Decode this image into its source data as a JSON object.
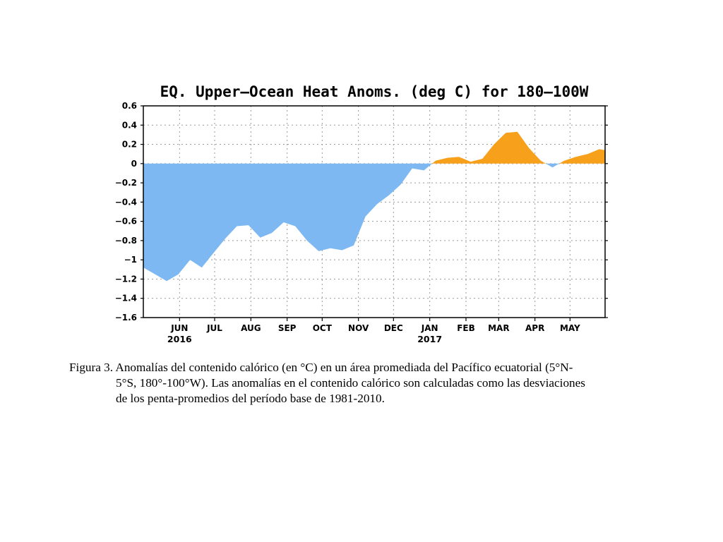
{
  "chart_data": {
    "type": "area",
    "title": "EQ. Upper—Ocean Heat Anoms. (deg C) for 180—100W",
    "xlabel": "",
    "ylabel": "",
    "ylim": [
      -1.6,
      0.6
    ],
    "yticks": [
      0.6,
      0.4,
      0.2,
      0,
      -0.2,
      -0.4,
      -0.6,
      -0.8,
      -1,
      -1.2,
      -1.4,
      -1.6
    ],
    "ytick_labels": [
      "0.6",
      "0.4",
      "0.2",
      "0",
      "−0.2",
      "−0.4",
      "−0.6",
      "−0.8",
      "−1",
      "−1.2",
      "−1.4",
      "−1.6"
    ],
    "xlim": [
      "2016-05-01",
      "2017-05-31"
    ],
    "xticks": [
      {
        "date": "2016-06-01",
        "label": "JUN",
        "year": "2016"
      },
      {
        "date": "2016-07-01",
        "label": "JUL"
      },
      {
        "date": "2016-08-01",
        "label": "AUG"
      },
      {
        "date": "2016-09-01",
        "label": "SEP"
      },
      {
        "date": "2016-10-01",
        "label": "OCT"
      },
      {
        "date": "2016-11-01",
        "label": "NOV"
      },
      {
        "date": "2016-12-01",
        "label": "DEC"
      },
      {
        "date": "2017-01-01",
        "label": "JAN",
        "year": "2017"
      },
      {
        "date": "2017-02-01",
        "label": "FEB"
      },
      {
        "date": "2017-03-01",
        "label": "MAR"
      },
      {
        "date": "2017-04-01",
        "label": "APR"
      },
      {
        "date": "2017-05-01",
        "label": "MAY"
      }
    ],
    "grid": true,
    "fill_colors": {
      "positive": "#f7a01c",
      "negative": "#7db8f2"
    },
    "x": [
      "2016-05-01",
      "2016-05-11",
      "2016-05-21",
      "2016-05-31",
      "2016-06-10",
      "2016-06-20",
      "2016-06-30",
      "2016-07-10",
      "2016-07-20",
      "2016-07-30",
      "2016-08-09",
      "2016-08-19",
      "2016-08-29",
      "2016-09-08",
      "2016-09-18",
      "2016-09-28",
      "2016-10-08",
      "2016-10-18",
      "2016-10-28",
      "2016-11-07",
      "2016-11-17",
      "2016-11-27",
      "2016-12-07",
      "2016-12-17",
      "2016-12-27",
      "2017-01-06",
      "2017-01-16",
      "2017-01-26",
      "2017-02-05",
      "2017-02-15",
      "2017-02-25",
      "2017-03-07",
      "2017-03-17",
      "2017-03-27",
      "2017-04-06",
      "2017-04-16",
      "2017-04-26",
      "2017-05-06",
      "2017-05-16",
      "2017-05-26",
      "2017-05-31"
    ],
    "values": [
      -1.08,
      -1.15,
      -1.22,
      -1.15,
      -1.0,
      -1.08,
      -0.93,
      -0.78,
      -0.65,
      -0.64,
      -0.77,
      -0.72,
      -0.61,
      -0.65,
      -0.8,
      -0.91,
      -0.88,
      -0.9,
      -0.85,
      -0.55,
      -0.42,
      -0.33,
      -0.22,
      -0.05,
      -0.07,
      0.03,
      0.06,
      0.07,
      0.02,
      0.05,
      0.2,
      0.32,
      0.33,
      0.16,
      0.03,
      -0.04,
      0.03,
      0.07,
      0.1,
      0.15,
      0.14
    ]
  },
  "caption": {
    "line1": "Figura 3. Anomalías del contenido calórico (en °C) en un área promediada del Pacífico ecuatorial (5°N-",
    "line2": "5°S, 180°-100°W). Las anomalías en el contenido calórico son calculadas como las desviaciones",
    "line3": "de los penta-promedios del período base de 1981-2010."
  }
}
